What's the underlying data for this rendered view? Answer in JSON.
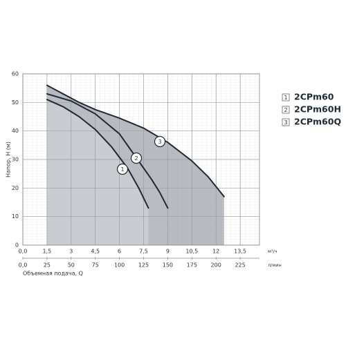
{
  "chart_data": {
    "type": "line",
    "y_label": "Напор, H (м)",
    "x_label": "Объемная подача, Q",
    "x_unit": "м³/ч",
    "x2_unit": "л/мин",
    "xlim": [
      0,
      14.7
    ],
    "x2lim": [
      0,
      245
    ],
    "ylim": [
      0,
      60
    ],
    "xticks": [
      {
        "value": 0,
        "label": "0,0"
      },
      {
        "value": 1.5,
        "label": "1,5"
      },
      3,
      {
        "value": 4.5,
        "label": "4,5"
      },
      6,
      {
        "value": 7.5,
        "label": "7,5"
      },
      9,
      {
        "value": 10.5,
        "label": "10,5"
      },
      12,
      {
        "value": 13.5,
        "label": "13,5"
      }
    ],
    "x2ticks": [
      {
        "value": 0,
        "label": "0,0"
      },
      25,
      50,
      75,
      100,
      125,
      150,
      175,
      200,
      225
    ],
    "yticks": [
      0,
      10,
      20,
      30,
      40,
      50,
      60
    ],
    "grid": true,
    "series": [
      {
        "name": "2CPm60",
        "label": "1",
        "color": "#1f2a33",
        "x": [
          1.5,
          2.5,
          3.5,
          4.5,
          5.5,
          6.5,
          7.2,
          7.8
        ],
        "values": [
          51,
          48.5,
          45,
          40.5,
          34.5,
          27,
          20,
          13
        ]
      },
      {
        "name": "2CPm60H",
        "label": "2",
        "color": "#1f2a33",
        "x": [
          1.5,
          3,
          4.5,
          6,
          7,
          8,
          8.5,
          9
        ],
        "values": [
          53,
          50.5,
          46,
          39,
          31,
          23,
          18.5,
          13
        ]
      },
      {
        "name": "2CPm60Q",
        "label": "3",
        "color": "#1f2a33",
        "x": [
          1.5,
          2.5,
          3.5,
          4.5,
          6,
          7.5,
          9,
          10.5,
          11.5,
          12.5
        ],
        "values": [
          56,
          53,
          50,
          47.5,
          44.5,
          41,
          36,
          29.5,
          24,
          17
        ]
      }
    ]
  }
}
